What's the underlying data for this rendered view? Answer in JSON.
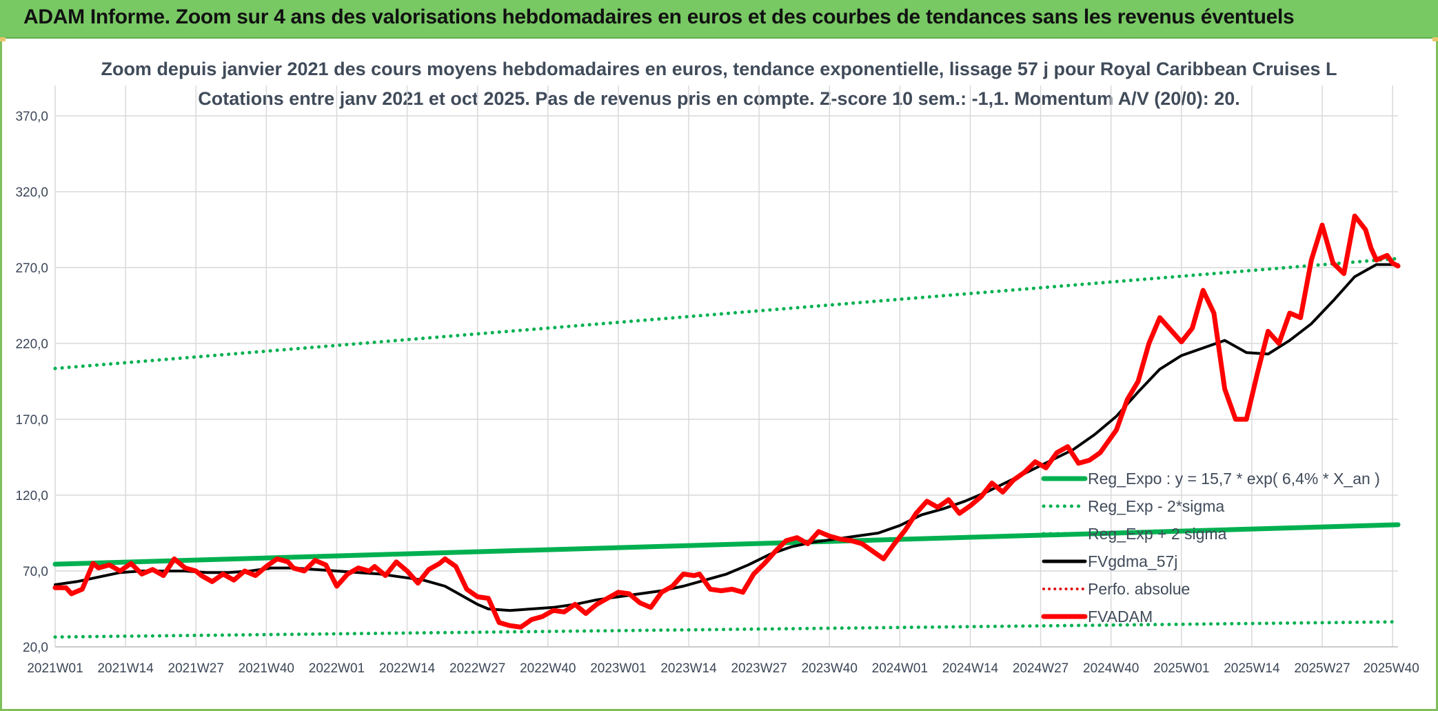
{
  "header": {
    "title": "ADAM Informe. Zoom sur 4 ans des valorisations hebdomadaires en euros et des courbes de tendances sans les revenus éventuels"
  },
  "chart_data": {
    "type": "line",
    "title": "Zoom depuis janvier 2021 des cours moyens hebdomadaires en euros, tendance exponentielle, lissage 57 j pour Royal Caribbean Cruises L",
    "subtitle": "Cotations entre janv 2021 et oct 2025. Pas de revenus pris en compte. Z-score 10 sem.: -1,1. Momentum A/V (20/0): 20.",
    "xlabel": "",
    "ylabel": "",
    "ylim": [
      20,
      390
    ],
    "y_ticks": [
      "20,0",
      "70,0",
      "120,0",
      "170,0",
      "220,0",
      "270,0",
      "320,0",
      "370,0"
    ],
    "x_ticks": [
      "2021W01",
      "2021W14",
      "2021W27",
      "2021W40",
      "2022W01",
      "2022W14",
      "2022W27",
      "2022W40",
      "2023W01",
      "2023W14",
      "2023W27",
      "2023W40",
      "2024W01",
      "2024W14",
      "2024W27",
      "2024W40",
      "2025W01",
      "2025W14",
      "2025W27",
      "2025W40"
    ],
    "grid": true,
    "legend_position": "bottom-right",
    "colors": {
      "reg_expo": "#00b050",
      "sigma": "#00b050",
      "fvgdma": "#000000",
      "perfo": "#e01010",
      "fvadam": "#ff0000"
    },
    "series": [
      {
        "name": "Reg_Expo : y = 15,7 * exp( 6,4% *  X_an )",
        "style": "solid-thick",
        "x": [
          0,
          248
        ],
        "values": [
          74.5,
          100.5
        ]
      },
      {
        "name": "Reg_Exp - 2*sigma",
        "style": "dotted",
        "x": [
          0,
          248
        ],
        "values": [
          26.5,
          36.5
        ]
      },
      {
        "name": "Reg_Exp + 2 sigma",
        "style": "dotted",
        "x": [
          0,
          248
        ],
        "values": [
          203.5,
          276
        ]
      },
      {
        "name": "FVgdma_57j",
        "style": "solid",
        "x": [
          0,
          4,
          8,
          12,
          16,
          20,
          24,
          28,
          32,
          36,
          40,
          44,
          48,
          52,
          56,
          60,
          64,
          68,
          72,
          74,
          76,
          78,
          80,
          84,
          88,
          92,
          96,
          100,
          104,
          108,
          112,
          116,
          120,
          124,
          128,
          132,
          136,
          140,
          144,
          148,
          152,
          156,
          160,
          164,
          168,
          172,
          176,
          180,
          184,
          188,
          192,
          196,
          200,
          204,
          208,
          212,
          216,
          220,
          224,
          228,
          232,
          236,
          240,
          244,
          248
        ],
        "values": [
          61,
          63,
          66,
          69,
          70,
          70,
          70,
          69,
          69,
          70,
          72,
          72,
          71,
          70,
          69,
          68,
          66,
          64,
          60,
          56,
          52,
          48,
          45,
          44,
          45,
          46,
          48,
          51,
          53,
          55,
          57,
          60,
          64,
          68,
          74,
          81,
          86,
          89,
          91,
          93,
          95,
          100,
          107,
          111,
          116,
          122,
          129,
          136,
          143,
          150,
          160,
          172,
          188,
          203,
          212,
          217,
          222,
          214,
          213,
          222,
          233,
          248,
          264,
          272,
          272
        ]
      },
      {
        "name": "Perfo. absolue",
        "style": "dotted",
        "x": [],
        "values": []
      },
      {
        "name": "FVADAM",
        "style": "solid-thick",
        "x": [
          0,
          2,
          3,
          5,
          7,
          8,
          10,
          12,
          14,
          16,
          18,
          20,
          22,
          24,
          26,
          27,
          29,
          31,
          33,
          35,
          37,
          39,
          41,
          43,
          44,
          46,
          48,
          50,
          52,
          54,
          56,
          58,
          59,
          61,
          63,
          65,
          67,
          69,
          71,
          72,
          74,
          76,
          78,
          80,
          82,
          84,
          86,
          88,
          90,
          92,
          94,
          96,
          98,
          100,
          102,
          104,
          106,
          108,
          110,
          112,
          114,
          116,
          118,
          119,
          121,
          123,
          125,
          127,
          129,
          131,
          133,
          135,
          137,
          139,
          141,
          143,
          145,
          147,
          149,
          151,
          153,
          155,
          157,
          159,
          161,
          163,
          165,
          167,
          169,
          171,
          173,
          175,
          177,
          179,
          181,
          183,
          185,
          187,
          189,
          191,
          193,
          195,
          196,
          198,
          200,
          202,
          204,
          206,
          208,
          210,
          212,
          214,
          216,
          218,
          220,
          222,
          224,
          226,
          228,
          230,
          232,
          234,
          236,
          238,
          240,
          242,
          243,
          244,
          246,
          247,
          248
        ],
        "values": [
          59,
          59,
          55,
          58,
          75,
          72,
          74,
          70,
          75,
          68,
          71,
          67,
          78,
          72,
          70,
          67,
          63,
          68,
          64,
          70,
          67,
          73,
          78,
          76,
          72,
          70,
          77,
          74,
          60,
          68,
          72,
          70,
          73,
          67,
          76,
          70,
          62,
          71,
          75,
          78,
          73,
          58,
          53,
          52,
          36,
          34,
          33,
          38,
          40,
          44,
          43,
          48,
          42,
          48,
          52,
          56,
          55,
          49,
          46,
          56,
          60,
          68,
          67,
          68,
          58,
          57,
          58,
          56,
          68,
          75,
          83,
          90,
          92,
          88,
          96,
          93,
          91,
          90,
          88,
          83,
          78,
          88,
          97,
          108,
          116,
          112,
          117,
          108,
          113,
          119,
          128,
          122,
          130,
          135,
          142,
          138,
          148,
          152,
          141,
          143,
          148,
          158,
          163,
          183,
          195,
          220,
          237,
          229,
          221,
          230,
          255,
          240,
          190,
          170,
          170,
          200,
          228,
          220,
          240,
          237,
          275,
          298,
          273,
          266,
          304,
          295,
          283,
          275,
          278,
          273,
          271
        ]
      }
    ]
  }
}
